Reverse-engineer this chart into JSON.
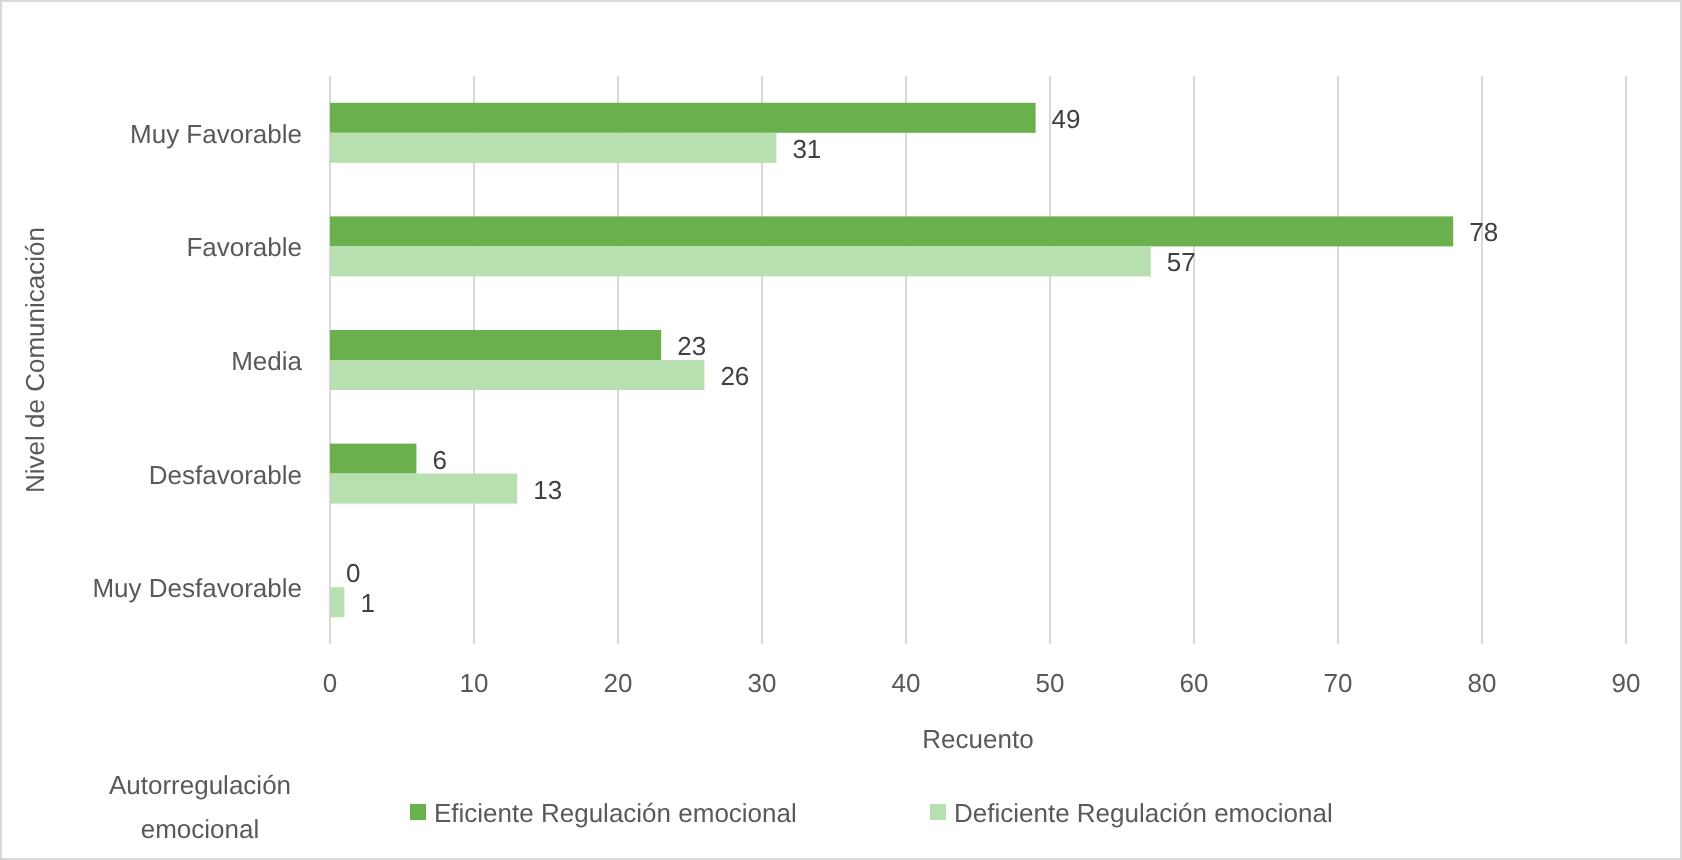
{
  "chart_data": {
    "type": "bar",
    "orientation": "horizontal",
    "xlabel": "Recuento",
    "ylabel": "Nivel de Comunicación",
    "legend_title": "Autorregulación emocional",
    "categories": [
      "Muy Favorable",
      "Favorable",
      "Media",
      "Desfavorable",
      "Muy Desfavorable"
    ],
    "series": [
      {
        "name": "Eficiente Regulación emocional",
        "color": "#6ab04c",
        "values": [
          49,
          78,
          23,
          6,
          0
        ]
      },
      {
        "name": "Deficiente Regulación emocional",
        "color": "#b8dfb0",
        "values": [
          31,
          57,
          26,
          13,
          1
        ]
      }
    ],
    "xlim": [
      0,
      90
    ],
    "xticks": [
      0,
      10,
      20,
      30,
      40,
      50,
      60,
      70,
      80,
      90
    ],
    "grid": "x",
    "data_labels": true,
    "legend": "bottom"
  }
}
